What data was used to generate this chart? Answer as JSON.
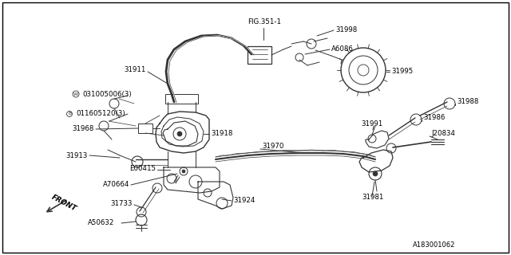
{
  "bg_color": "#ffffff",
  "dark": "#333333",
  "fig_label": "FIG.351-1",
  "diagram_id": "A183001062",
  "figsize": [
    6.4,
    3.2
  ],
  "dpi": 100,
  "xlim": [
    0,
    640
  ],
  "ylim": [
    0,
    320
  ]
}
